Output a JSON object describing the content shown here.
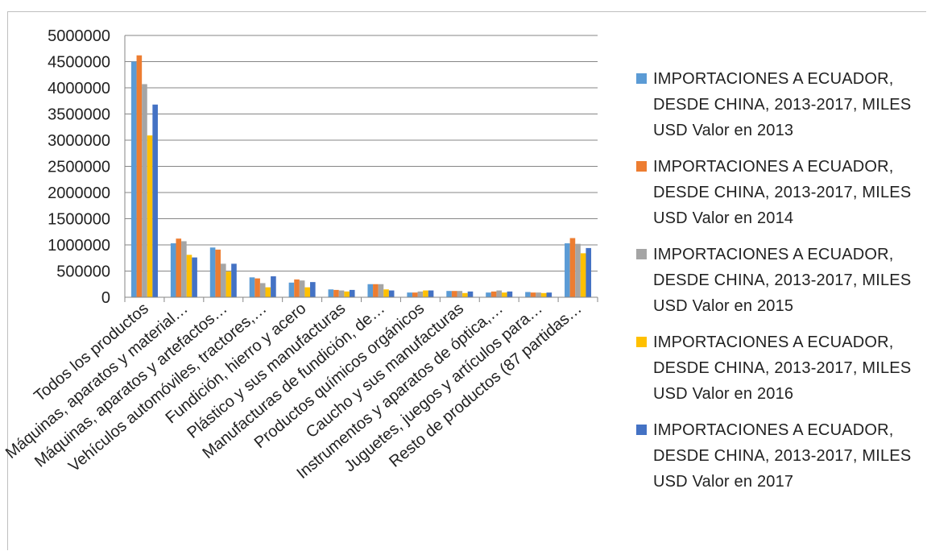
{
  "chart_data": {
    "type": "bar",
    "title": "",
    "xlabel": "",
    "ylabel": "",
    "ylim": [
      0,
      5000000
    ],
    "yticks": [
      0,
      500000,
      1000000,
      1500000,
      2000000,
      2500000,
      3000000,
      3500000,
      4000000,
      4500000,
      5000000
    ],
    "grid": true,
    "legend_position": "right",
    "categories": [
      "Todos los productos",
      "Máquinas, aparatos y material…",
      "Máquinas, aparatos y artefactos…",
      "Vehículos automóviles, tractores,…",
      "Fundición, hierro y acero",
      "Plástico y sus manufacturas",
      "Manufacturas de fundición, de…",
      "Productos químicos orgánicos",
      "Caucho y sus manufacturas",
      "Instrumentos y aparatos de óptica,…",
      "Juguetes, juegos y artículos para…",
      "Resto de productos (87 partidas…"
    ],
    "series": [
      {
        "name": "IMPORTACIONES A ECUADOR, DESDE CHINA, 2013-2017, MILES USD Valor en 2013",
        "color": "#5b9bd5",
        "values": [
          4500000,
          1030000,
          950000,
          380000,
          280000,
          150000,
          250000,
          90000,
          120000,
          90000,
          100000,
          1030000
        ]
      },
      {
        "name": "IMPORTACIONES A ECUADOR, DESDE CHINA, 2013-2017, MILES USD Valor en 2014",
        "color": "#ed7d31",
        "values": [
          4620000,
          1120000,
          910000,
          360000,
          340000,
          140000,
          250000,
          90000,
          120000,
          110000,
          90000,
          1130000
        ]
      },
      {
        "name": "IMPORTACIONES A ECUADOR, DESDE CHINA, 2013-2017, MILES USD Valor en 2015",
        "color": "#a5a5a5",
        "values": [
          4070000,
          1070000,
          640000,
          270000,
          320000,
          130000,
          250000,
          110000,
          120000,
          130000,
          90000,
          1020000
        ]
      },
      {
        "name": "IMPORTACIONES A ECUADOR, DESDE CHINA, 2013-2017, MILES USD Valor en 2016",
        "color": "#ffc000",
        "values": [
          3090000,
          810000,
          490000,
          190000,
          190000,
          110000,
          150000,
          130000,
          80000,
          90000,
          80000,
          840000
        ]
      },
      {
        "name": "IMPORTACIONES A ECUADOR, DESDE CHINA, 2013-2017, MILES USD Valor en 2017",
        "color": "#4472c4",
        "values": [
          3680000,
          760000,
          640000,
          400000,
          290000,
          140000,
          130000,
          130000,
          110000,
          110000,
          90000,
          940000
        ]
      }
    ]
  },
  "legend": {
    "items": [
      "IMPORTACIONES A ECUADOR, DESDE CHINA, 2013-2017, MILES USD Valor en 2013",
      "IMPORTACIONES A ECUADOR, DESDE CHINA, 2013-2017, MILES USD Valor en 2014",
      "IMPORTACIONES A ECUADOR, DESDE CHINA, 2013-2017, MILES USD Valor en 2015",
      "IMPORTACIONES A ECUADOR, DESDE CHINA, 2013-2017, MILES USD Valor en 2016",
      "IMPORTACIONES A ECUADOR, DESDE CHINA, 2013-2017, MILES USD Valor en 2017"
    ]
  }
}
